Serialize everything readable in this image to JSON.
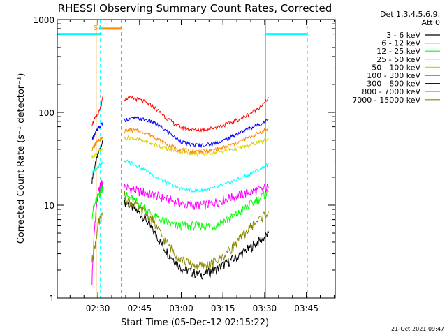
{
  "chart_data": {
    "type": "line",
    "title": "RHESSI Observing Summary Count Rates, Corrected",
    "xlabel": "Start Time (05-Dec-12 02:15:22)",
    "ylabel": "Corrected Count Rate (s⁻¹ detector⁻¹)",
    "x_unit": "minutes from 02:15:22",
    "xlim": [
      0,
      100
    ],
    "ylim": [
      1,
      1000
    ],
    "yscale": "log",
    "x_ticks": [
      {
        "value": 14.6,
        "label": "02:30"
      },
      {
        "value": 29.6,
        "label": "02:45"
      },
      {
        "value": 44.6,
        "label": "03:00"
      },
      {
        "value": 59.6,
        "label": "03:15"
      },
      {
        "value": 74.6,
        "label": "03:30"
      },
      {
        "value": 89.6,
        "label": "03:45"
      }
    ],
    "y_ticks": [
      {
        "value": 1,
        "label": "1"
      },
      {
        "value": 10,
        "label": "10"
      },
      {
        "value": 100,
        "label": "100"
      },
      {
        "value": 1000,
        "label": "1000"
      }
    ],
    "legend": {
      "placement": "right",
      "header": [
        "Det 1,3,4,5,6,9,",
        "Att 0"
      ],
      "entries": [
        {
          "label": "3 - 6 keV",
          "color": "#000000"
        },
        {
          "label": "6 - 12 keV",
          "color": "#ff00ff"
        },
        {
          "label": "12 - 25 keV",
          "color": "#00ff00"
        },
        {
          "label": "25 - 50 keV",
          "color": "#00ffff"
        },
        {
          "label": "50 - 100 keV",
          "color": "#d4d400"
        },
        {
          "label": "100 - 300 keV",
          "color": "#ff0000"
        },
        {
          "label": "300 - 800 keV",
          "color": "#0000ff"
        },
        {
          "label": "800 - 7000 keV",
          "color": "#ff8800"
        },
        {
          "label": "7000 - 15000 keV",
          "color": "#888800"
        }
      ]
    },
    "night_bars": [
      [
        0,
        16
      ],
      [
        75,
        90
      ]
    ],
    "night_bar_level": 700,
    "saa_bar": {
      "x": [
        15,
        23
      ],
      "level": 800
    },
    "markers": [
      {
        "label": "S",
        "x": 14,
        "color": "#ff8800"
      },
      {
        "label": "N",
        "x": 16,
        "color": "#00ffff"
      }
    ],
    "vlines": [
      {
        "x": 0,
        "color": "#00ffff",
        "dash": false
      },
      {
        "x": 14,
        "color": "#ff8800",
        "dash": false
      },
      {
        "x": 15.5,
        "color": "#00ffff",
        "dash": true
      },
      {
        "x": 23,
        "color": "#ff8800",
        "dash": true
      },
      {
        "x": 75,
        "color": "#00ffff",
        "dash": false
      },
      {
        "x": 90,
        "color": "#00ffff",
        "dash": true
      }
    ],
    "segments": [
      {
        "x_start": 12.5,
        "x_end": 16.5,
        "step": 0.5
      },
      {
        "x_start": 24,
        "x_end": 76,
        "step": 1.0
      }
    ],
    "series": [
      {
        "name": "3 - 6 keV",
        "color": "#000000",
        "seg1": [
          18,
          22,
          26,
          30,
          34,
          38,
          42,
          46,
          48
        ],
        "seg2": [
          11,
          10.5,
          10,
          9.5,
          9,
          8.5,
          8,
          7.5,
          7,
          6.2,
          5.5,
          5,
          4.6,
          4,
          3.6,
          3.3,
          3,
          2.8,
          2.6,
          2.4,
          2.2,
          2.1,
          2,
          2,
          1.9,
          1.9,
          1.8,
          1.8,
          1.8,
          1.8,
          1.9,
          1.9,
          2,
          2,
          2.1,
          2.2,
          2.3,
          2.4,
          2.5,
          2.6,
          2.7,
          2.8,
          3,
          3.1,
          3.3,
          3.4,
          3.6,
          3.8,
          4,
          4.2,
          4.4,
          4.6,
          5
        ]
      },
      {
        "name": "6 - 12 keV",
        "color": "#ff00ff",
        "seg1": [
          1.5,
          3,
          6,
          9,
          12,
          14,
          16,
          17,
          18
        ],
        "seg2": [
          16,
          15.5,
          15,
          14.8,
          14.5,
          14.2,
          14,
          13.8,
          13.5,
          13.2,
          13,
          12.8,
          12.5,
          12.2,
          12,
          11.8,
          11.5,
          11.3,
          11,
          10.8,
          10.5,
          10.3,
          10.2,
          10,
          10,
          10,
          10,
          10,
          10,
          10,
          10.2,
          10.3,
          10.5,
          10.8,
          11,
          11.2,
          11.5,
          11.8,
          12,
          12.3,
          12.5,
          12.8,
          13,
          13.3,
          13.5,
          13.8,
          14,
          14.2,
          14.5,
          14.7,
          15,
          15.2,
          15.5
        ]
      },
      {
        "name": "12 - 25 keV",
        "color": "#00ff00",
        "seg1": [
          8,
          9,
          10,
          11,
          12,
          13,
          14,
          15,
          16
        ],
        "seg2": [
          13,
          12.5,
          12,
          11.5,
          11,
          10.5,
          10,
          9.5,
          9,
          8.5,
          8,
          7.5,
          7.2,
          7,
          6.8,
          6.6,
          6.4,
          6.2,
          6,
          6,
          6,
          6,
          6,
          6,
          6,
          6,
          6,
          6,
          6,
          6,
          6,
          6,
          6,
          6.2,
          6.4,
          6.6,
          6.8,
          7,
          7.2,
          7.5,
          7.8,
          8,
          8.5,
          9,
          9.5,
          10,
          10.5,
          11,
          11.5,
          12,
          12.5,
          13,
          14
        ]
      },
      {
        "name": "25 - 50 keV",
        "color": "#00ffff",
        "seg1": [
          22,
          23,
          24,
          25,
          26,
          27,
          28,
          28,
          29
        ],
        "seg2": [
          30,
          29.5,
          29,
          28.5,
          27.5,
          26.5,
          25.5,
          24.5,
          23.5,
          22.5,
          21.5,
          20.5,
          19.7,
          19,
          18.3,
          17.6,
          17,
          16.5,
          16,
          15.6,
          15.3,
          15,
          14.8,
          14.6,
          14.5,
          14.4,
          14.4,
          14.4,
          14.5,
          14.6,
          14.8,
          15,
          15.2,
          15.5,
          15.8,
          16.2,
          16.6,
          17,
          17.5,
          18,
          18.5,
          19,
          19.6,
          20.2,
          20.8,
          21.5,
          22.2,
          23,
          23.8,
          24.6,
          25.5,
          26.5,
          28
        ]
      },
      {
        "name": "50 - 100 keV",
        "color": "#d4d400",
        "seg1": [
          33,
          34,
          35,
          36,
          37,
          38,
          39,
          40,
          41
        ],
        "seg2": [
          52,
          53,
          53,
          52.5,
          52,
          51,
          50,
          49,
          48,
          47,
          46,
          45,
          44,
          43,
          42,
          41,
          40,
          39.5,
          39,
          38.5,
          38,
          37.5,
          37,
          36.8,
          36.5,
          36.3,
          36,
          36,
          36,
          36,
          36.2,
          36.5,
          36.8,
          37,
          37.5,
          38,
          38.5,
          39,
          39.5,
          40,
          40.5,
          41,
          41.5,
          42,
          43,
          44,
          45,
          46,
          47,
          48,
          49,
          50,
          52
        ]
      },
      {
        "name": "100 - 300 keV",
        "color": "#ff0000",
        "seg1": [
          75,
          80,
          85,
          90,
          95,
          100,
          110,
          125,
          150
        ],
        "seg2": [
          140,
          142,
          143,
          142,
          140,
          138,
          135,
          131,
          127,
          122,
          117,
          112,
          106,
          100,
          94,
          89,
          84,
          80,
          76,
          73,
          70,
          68,
          67,
          66,
          65.5,
          65,
          65,
          65,
          65,
          65.5,
          66,
          67,
          68,
          69,
          70,
          71.5,
          73,
          75,
          77,
          79,
          81,
          83,
          86,
          89,
          92,
          96,
          100,
          105,
          110,
          116,
          122,
          130,
          145
        ]
      },
      {
        "name": "300 - 800 keV",
        "color": "#0000ff",
        "seg1": [
          52,
          55,
          58,
          62,
          65,
          68,
          71,
          74,
          78
        ],
        "seg2": [
          82,
          84,
          85,
          86,
          86,
          85.5,
          85,
          84,
          83,
          81,
          79,
          76,
          73,
          70,
          67,
          64,
          61,
          58,
          55,
          52,
          50,
          48,
          46.5,
          45.5,
          45,
          44.5,
          44.5,
          44.5,
          44.5,
          44.5,
          45,
          45.5,
          46,
          47,
          48,
          49,
          50,
          51.5,
          53,
          55,
          57,
          59,
          61,
          63,
          65,
          67,
          69,
          71,
          73,
          75,
          77,
          80,
          85
        ]
      },
      {
        "name": "800 - 7000 keV",
        "color": "#ff8800",
        "seg1": [
          40,
          42,
          44,
          46,
          48,
          50,
          52,
          54,
          56
        ],
        "seg2": [
          62,
          63,
          64,
          64,
          64,
          63,
          62,
          61,
          60,
          58,
          56,
          54,
          52,
          50,
          48,
          46,
          44,
          43,
          42,
          41,
          40,
          39.5,
          39,
          38.5,
          38,
          38,
          38,
          38,
          38,
          38.2,
          38.5,
          39,
          39.5,
          40,
          40.5,
          41,
          42,
          43,
          44,
          45,
          46,
          47.5,
          49,
          50.5,
          52,
          53.5,
          55,
          57,
          59,
          61,
          63,
          65,
          68
        ]
      },
      {
        "name": "7000 - 15000 keV",
        "color": "#888800",
        "seg1": [
          2.5,
          3,
          3.5,
          4.5,
          5.5,
          6.5,
          7,
          7.5,
          8
        ],
        "seg2": [
          13,
          12,
          11,
          10.5,
          10,
          9.5,
          9,
          8.5,
          8,
          7.5,
          7,
          6.3,
          5.6,
          5,
          4.5,
          4,
          3.7,
          3.4,
          3.1,
          2.9,
          2.7,
          2.6,
          2.5,
          2.4,
          2.3,
          2.3,
          2.2,
          2.2,
          2.2,
          2.2,
          2.3,
          2.3,
          2.4,
          2.5,
          2.6,
          2.7,
          2.9,
          3.1,
          3.3,
          3.5,
          3.8,
          4.1,
          4.4,
          4.8,
          5.2,
          5.6,
          6,
          6.4,
          6.8,
          7.2,
          7.6,
          8,
          8.5
        ]
      }
    ]
  },
  "footer": {
    "timestamp": "21-Oct-2021 09:47"
  }
}
